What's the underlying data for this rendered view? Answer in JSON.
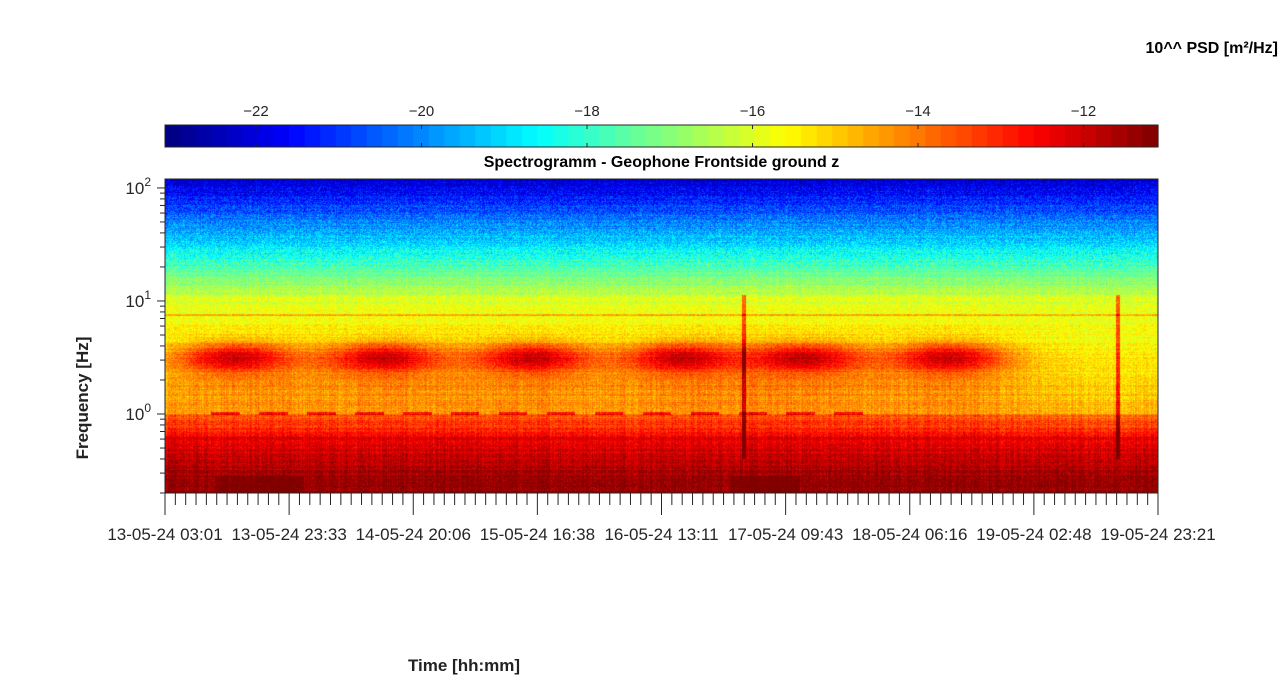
{
  "chart_data": {
    "type": "heatmap",
    "title": "Spectrogramm - Geophone Frontside ground z",
    "xlabel": "Time [hh:mm]",
    "ylabel": "Frequency [Hz]",
    "y_scale": "log",
    "y_ticks": [
      {
        "value": 100,
        "base": "10",
        "exp": "2"
      },
      {
        "value": 10,
        "base": "10",
        "exp": "1"
      },
      {
        "value": 1,
        "base": "10",
        "exp": "0"
      }
    ],
    "ylim": [
      0.2,
      120
    ],
    "x_ticks": [
      "13-05-24  03:01",
      "13-05-24  23:33",
      "14-05-24  20:06",
      "15-05-24  16:38",
      "16-05-24  13:11",
      "17-05-24  09:43",
      "18-05-24  06:16",
      "19-05-24  02:48",
      "19-05-24  23:21"
    ],
    "colorbar": {
      "label": "10^^ PSD [m²/Hz]",
      "range": [
        -23.1,
        -11.1
      ],
      "ticks": [
        -22,
        -20,
        -18,
        -16,
        -14,
        -12
      ],
      "colormap": "jet",
      "location": "top"
    },
    "features": {
      "daily_activity_band_hz": [
        2,
        5
      ],
      "activity_bursts_days": [
        "13-05-24",
        "14-05-24",
        "15-05-24",
        "16-05-24",
        "17-05-24",
        "18-05-24"
      ],
      "persistent_line_hz": 1.0,
      "narrow_line_hz": 7.5,
      "transient_spikes_days": [
        "16-05-24",
        "19-05-24"
      ]
    }
  }
}
